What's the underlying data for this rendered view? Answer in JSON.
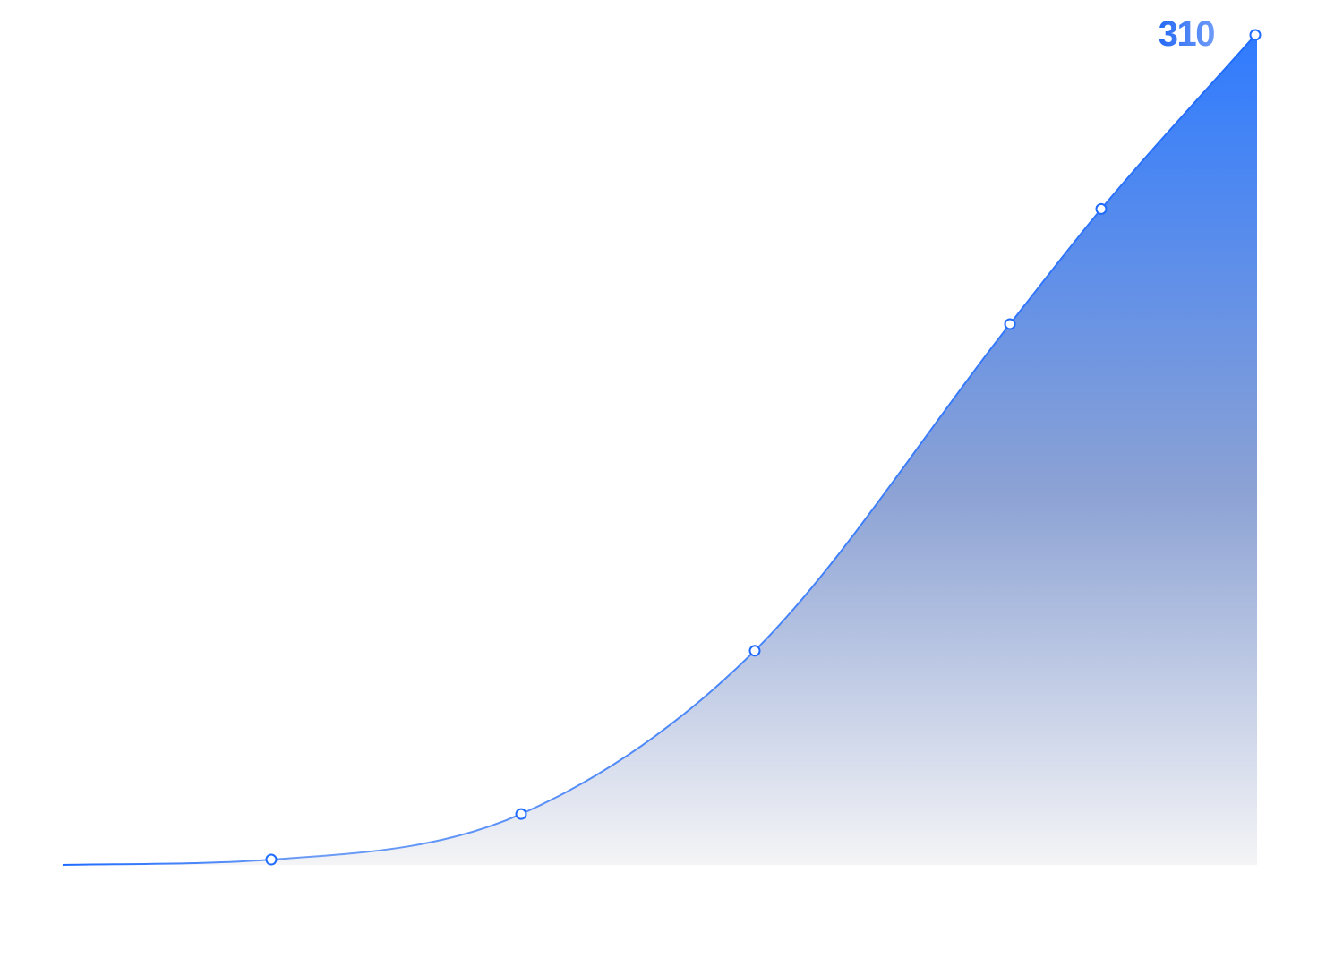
{
  "chart_data": {
    "type": "area",
    "title": "",
    "xlabel": "",
    "ylabel": "",
    "x": [
      0,
      1,
      2,
      3,
      4,
      5,
      6
    ],
    "series": [
      {
        "values": [
          0,
          2,
          19,
          80,
          202,
          245,
          310
        ]
      }
    ],
    "xlim": [
      0,
      6
    ],
    "ylim": [
      0,
      310
    ],
    "grid": false,
    "legend": "none",
    "data_labels": {
      "peak": "310"
    },
    "colors": {
      "line": "#1F6BFF",
      "line_light": "#6C9CF5",
      "marker_stroke": "#1F6BFF",
      "fill_top": "#2F7BFF",
      "fill_mid": "#8CA2D4",
      "fill_bottom": "#F4F4F6",
      "label_dark": "#2569F5",
      "label_light": "#6E9BF8"
    }
  }
}
